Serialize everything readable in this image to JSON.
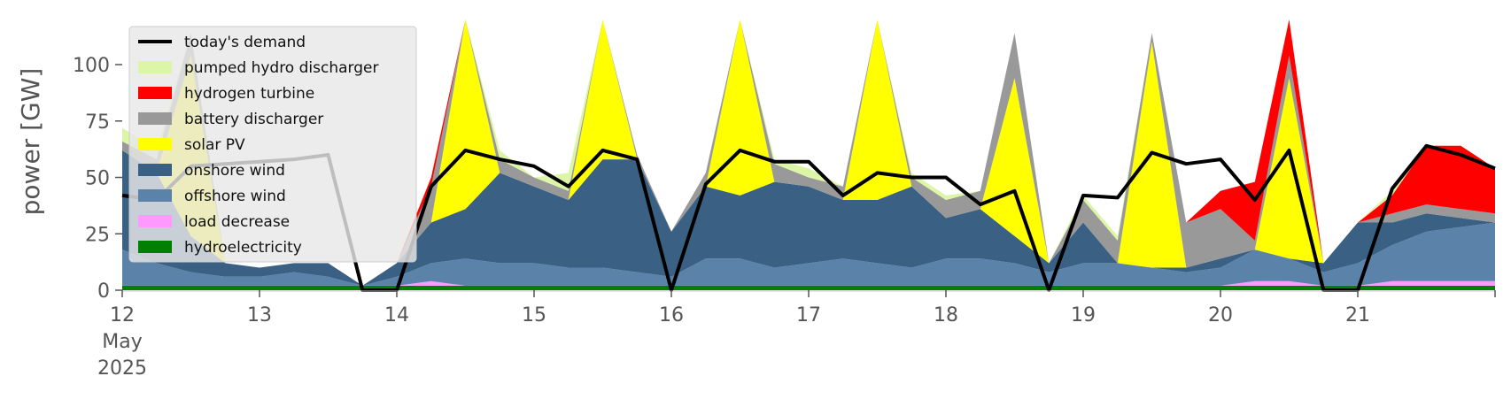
{
  "chart_data": {
    "type": "area",
    "title": "",
    "xlabel": "",
    "ylabel": "power [GW]",
    "ylim": [
      0,
      120
    ],
    "xlim": [
      "2025-05-12T00:00",
      "2025-05-22T00:00"
    ],
    "yticks": [
      0,
      25,
      50,
      75,
      100
    ],
    "yticklabels": [
      "0",
      "25",
      "50",
      "75",
      "100"
    ],
    "xticks": [
      "2025-05-12",
      "2025-05-13",
      "2025-05-14",
      "2025-05-15",
      "2025-05-16",
      "2025-05-17",
      "2025-05-18",
      "2025-05-19",
      "2025-05-20",
      "2025-05-21"
    ],
    "xticklabels": [
      "12",
      "13",
      "14",
      "15",
      "16",
      "17",
      "18",
      "19",
      "20",
      "21"
    ],
    "xticklabel_first_extra": [
      "May",
      "2025"
    ],
    "grid": false,
    "legend_position": "top-left",
    "x": [
      "2025-05-12T00:00",
      "2025-05-12T06:00",
      "2025-05-12T12:00",
      "2025-05-12T18:00",
      "2025-05-13T00:00",
      "2025-05-13T06:00",
      "2025-05-13T12:00",
      "2025-05-13T18:00",
      "2025-05-14T00:00",
      "2025-05-14T06:00",
      "2025-05-14T12:00",
      "2025-05-14T18:00",
      "2025-05-15T00:00",
      "2025-05-15T06:00",
      "2025-05-15T12:00",
      "2025-05-15T18:00",
      "2025-05-16T00:00",
      "2025-05-16T06:00",
      "2025-05-16T12:00",
      "2025-05-16T18:00",
      "2025-05-17T00:00",
      "2025-05-17T06:00",
      "2025-05-17T12:00",
      "2025-05-17T18:00",
      "2025-05-18T00:00",
      "2025-05-18T06:00",
      "2025-05-18T12:00",
      "2025-05-18T18:00",
      "2025-05-19T00:00",
      "2025-05-19T06:00",
      "2025-05-19T12:00",
      "2025-05-19T18:00",
      "2025-05-20T00:00",
      "2025-05-20T06:00",
      "2025-05-20T12:00",
      "2025-05-20T18:00",
      "2025-05-21T00:00",
      "2025-05-21T06:00",
      "2025-05-21T12:00",
      "2025-05-21T18:00",
      "2025-05-22T00:00"
    ],
    "series": [
      {
        "name": "hydroelectricity",
        "color": "#008000",
        "values": [
          2,
          2,
          2,
          2,
          2,
          2,
          2,
          2,
          2,
          2,
          2,
          2,
          2,
          2,
          2,
          2,
          2,
          2,
          2,
          2,
          2,
          2,
          2,
          2,
          2,
          2,
          2,
          2,
          2,
          2,
          2,
          2,
          2,
          2,
          2,
          2,
          2,
          2,
          2,
          2,
          2
        ]
      },
      {
        "name": "load decrease",
        "color": "#ff99ff",
        "values": [
          0,
          0,
          0,
          0,
          0,
          0,
          0,
          0,
          0,
          2,
          0,
          0,
          0,
          0,
          0,
          0,
          0,
          0,
          0,
          0,
          0,
          0,
          0,
          0,
          0,
          0,
          0,
          0,
          0,
          0,
          0,
          0,
          0,
          2,
          2,
          0,
          0,
          2,
          2,
          2,
          2
        ]
      },
      {
        "name": "offshore wind",
        "color": "#5b82a8",
        "values": [
          16,
          10,
          6,
          4,
          4,
          6,
          4,
          0,
          4,
          8,
          12,
          10,
          10,
          8,
          8,
          6,
          4,
          12,
          12,
          8,
          10,
          12,
          10,
          8,
          12,
          12,
          10,
          6,
          10,
          10,
          8,
          6,
          8,
          14,
          10,
          6,
          10,
          16,
          22,
          24,
          26
        ]
      },
      {
        "name": "onshore wind",
        "color": "#3a6183",
        "values": [
          44,
          40,
          16,
          6,
          4,
          4,
          6,
          0,
          6,
          18,
          22,
          40,
          34,
          30,
          48,
          50,
          20,
          32,
          28,
          38,
          34,
          26,
          28,
          36,
          18,
          22,
          12,
          4,
          18,
          0,
          0,
          2,
          4,
          0,
          0,
          4,
          18,
          10,
          8,
          4,
          0
        ]
      },
      {
        "name": "solar PV",
        "color": "#ffff00",
        "values": [
          0,
          0,
          80,
          0,
          0,
          0,
          0,
          0,
          0,
          0,
          100,
          0,
          0,
          0,
          100,
          0,
          0,
          0,
          100,
          0,
          0,
          0,
          100,
          0,
          0,
          0,
          70,
          0,
          0,
          0,
          100,
          0,
          0,
          0,
          80,
          0,
          0,
          0,
          0,
          0,
          0
        ]
      },
      {
        "name": "battery discharger",
        "color": "#999999",
        "values": [
          4,
          6,
          10,
          0,
          0,
          0,
          0,
          0,
          0,
          16,
          20,
          6,
          4,
          4,
          6,
          2,
          0,
          6,
          8,
          8,
          4,
          6,
          4,
          4,
          8,
          8,
          20,
          0,
          10,
          10,
          4,
          20,
          22,
          4,
          10,
          0,
          0,
          4,
          4,
          4,
          4
        ]
      },
      {
        "name": "hydrogen turbine",
        "color": "#ff0000",
        "values": [
          0,
          0,
          0,
          0,
          0,
          0,
          0,
          0,
          0,
          4,
          0,
          0,
          0,
          0,
          0,
          0,
          0,
          0,
          0,
          0,
          0,
          0,
          0,
          0,
          0,
          0,
          0,
          0,
          0,
          0,
          0,
          0,
          8,
          26,
          20,
          0,
          0,
          8,
          26,
          28,
          20
        ]
      },
      {
        "name": "pumped hydro discharger",
        "color": "#ddf5a6",
        "values": [
          6,
          4,
          0,
          0,
          0,
          0,
          0,
          0,
          0,
          0,
          0,
          4,
          0,
          8,
          0,
          0,
          0,
          0,
          0,
          2,
          4,
          0,
          4,
          2,
          2,
          0,
          0,
          0,
          2,
          2,
          0,
          0,
          0,
          0,
          0,
          0,
          0,
          2,
          0,
          0,
          0
        ]
      },
      {
        "name": "today's demand",
        "color": "#000000",
        "type": "line",
        "values": [
          42,
          40,
          55,
          56,
          57,
          58,
          60,
          0,
          0,
          46,
          62,
          58,
          55,
          46,
          62,
          58,
          0,
          47,
          62,
          57,
          57,
          42,
          52,
          50,
          50,
          38,
          44,
          0,
          42,
          41,
          61,
          56,
          58,
          40,
          62,
          0,
          0,
          45,
          64,
          60,
          54
        ]
      }
    ]
  }
}
